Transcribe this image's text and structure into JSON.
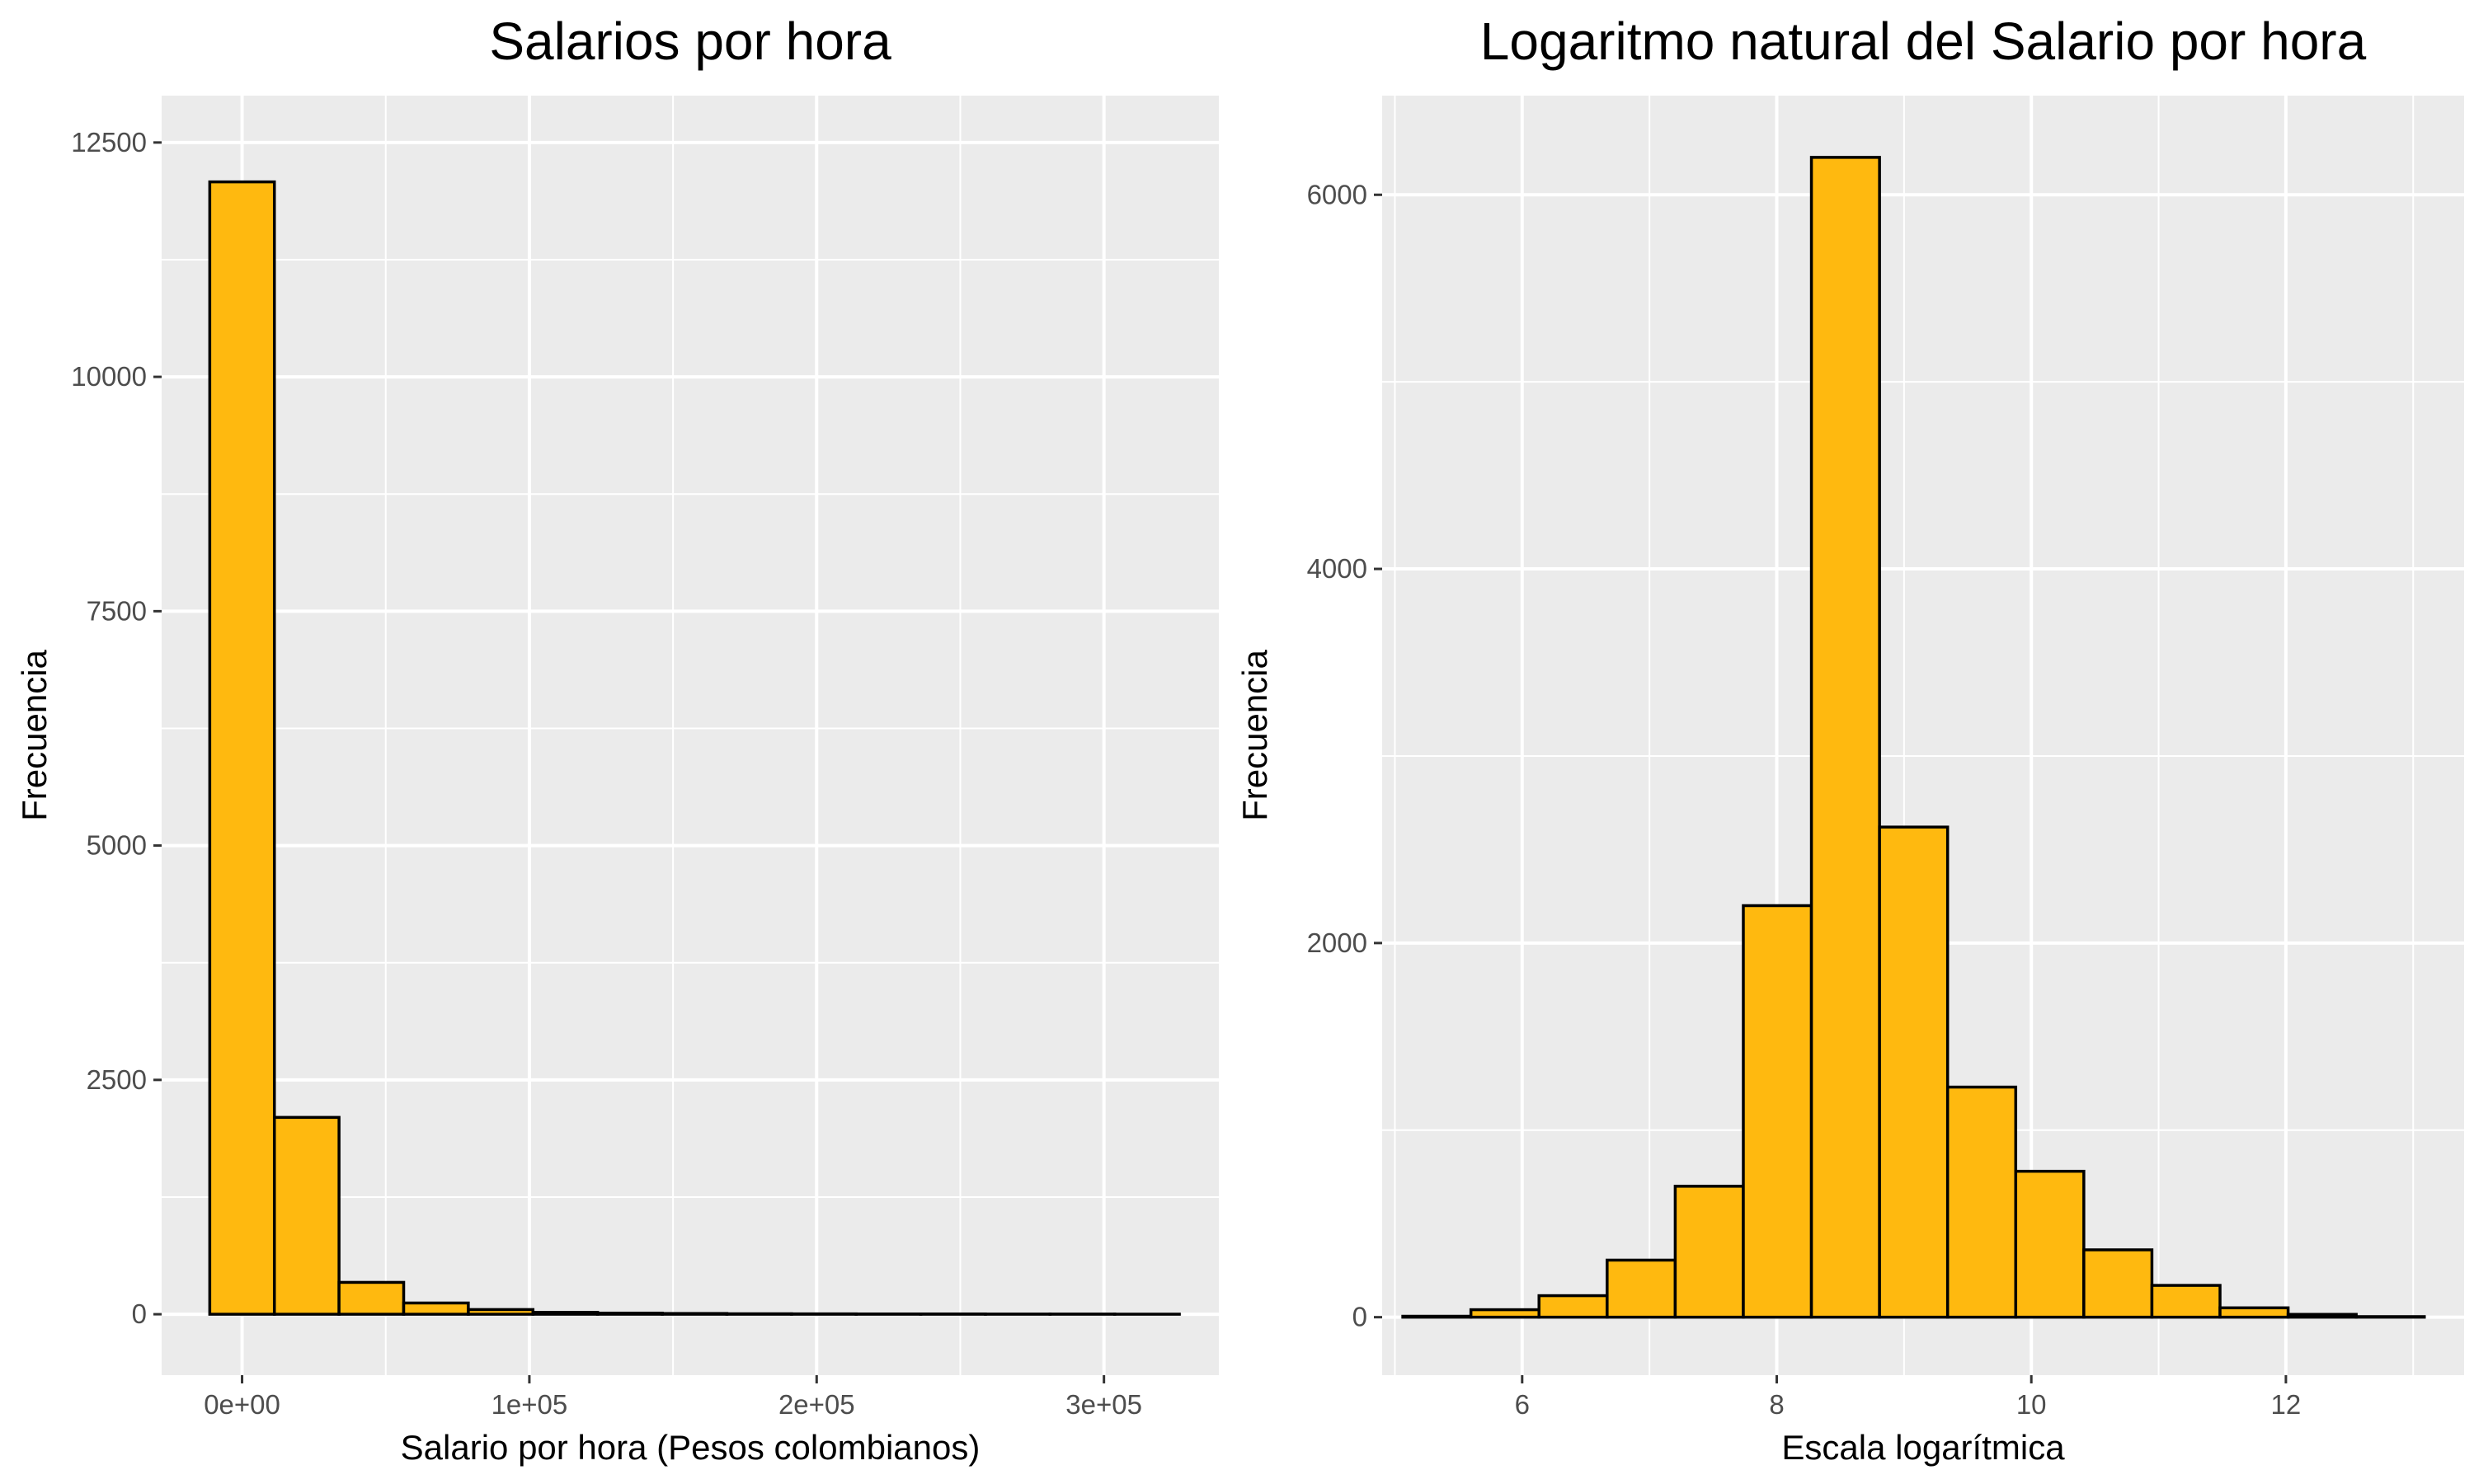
{
  "chart_data": [
    {
      "type": "bar",
      "title": "Salarios por hora",
      "xlabel": "Salario por hora (Pesos colombianos)",
      "ylabel": "Frecuencia",
      "colors": {
        "fill": "#FFB90F",
        "stroke": "#000000",
        "panel": "#EBEBEB",
        "grid": "#FFFFFF"
      },
      "xlim": [
        -28000,
        340000
      ],
      "ylim": [
        -650,
        13000
      ],
      "x_ticks": [
        0,
        100000,
        200000,
        300000
      ],
      "x_tick_labels": [
        "0e+00",
        "1e+05",
        "2e+05",
        "3e+05"
      ],
      "y_ticks": [
        0,
        2500,
        5000,
        7500,
        10000,
        12500
      ],
      "y_tick_labels": [
        "0",
        "2500",
        "5000",
        "7500",
        "10000",
        "12500"
      ],
      "bin_width": 22500,
      "bins": [
        {
          "x": 0,
          "count": 12080
        },
        {
          "x": 22500,
          "count": 2100
        },
        {
          "x": 45000,
          "count": 340
        },
        {
          "x": 67500,
          "count": 120
        },
        {
          "x": 90000,
          "count": 50
        },
        {
          "x": 112500,
          "count": 20
        },
        {
          "x": 135000,
          "count": 12
        },
        {
          "x": 157500,
          "count": 8
        },
        {
          "x": 180000,
          "count": 5
        },
        {
          "x": 202500,
          "count": 4
        },
        {
          "x": 225000,
          "count": 3
        },
        {
          "x": 247500,
          "count": 3
        },
        {
          "x": 270000,
          "count": 2
        },
        {
          "x": 292500,
          "count": 2
        },
        {
          "x": 315000,
          "count": 1
        }
      ]
    },
    {
      "type": "bar",
      "title": "Logaritmo natural del Salario por hora",
      "xlabel": "Escala logarítmica",
      "ylabel": "Frecuencia",
      "colors": {
        "fill": "#FFB90F",
        "stroke": "#000000",
        "panel": "#EBEBEB",
        "grid": "#FFFFFF"
      },
      "xlim": [
        4.9,
        13.4
      ],
      "ylim": [
        -310,
        6530
      ],
      "x_ticks": [
        6,
        8,
        10,
        12
      ],
      "x_tick_labels": [
        "6",
        "8",
        "10",
        "12"
      ],
      "y_ticks": [
        0,
        2000,
        4000,
        6000
      ],
      "y_tick_labels": [
        "0",
        "2000",
        "4000",
        "6000"
      ],
      "bin_width": 0.535,
      "bins": [
        {
          "x": 5.33,
          "count": 5
        },
        {
          "x": 5.865,
          "count": 40
        },
        {
          "x": 6.4,
          "count": 115
        },
        {
          "x": 6.935,
          "count": 305
        },
        {
          "x": 7.47,
          "count": 700
        },
        {
          "x": 8.005,
          "count": 2200
        },
        {
          "x": 8.54,
          "count": 6200
        },
        {
          "x": 9.075,
          "count": 2620
        },
        {
          "x": 9.61,
          "count": 1230
        },
        {
          "x": 10.145,
          "count": 780
        },
        {
          "x": 10.68,
          "count": 360
        },
        {
          "x": 11.215,
          "count": 170
        },
        {
          "x": 11.75,
          "count": 50
        },
        {
          "x": 12.285,
          "count": 15
        },
        {
          "x": 12.82,
          "count": 3
        }
      ]
    }
  ]
}
